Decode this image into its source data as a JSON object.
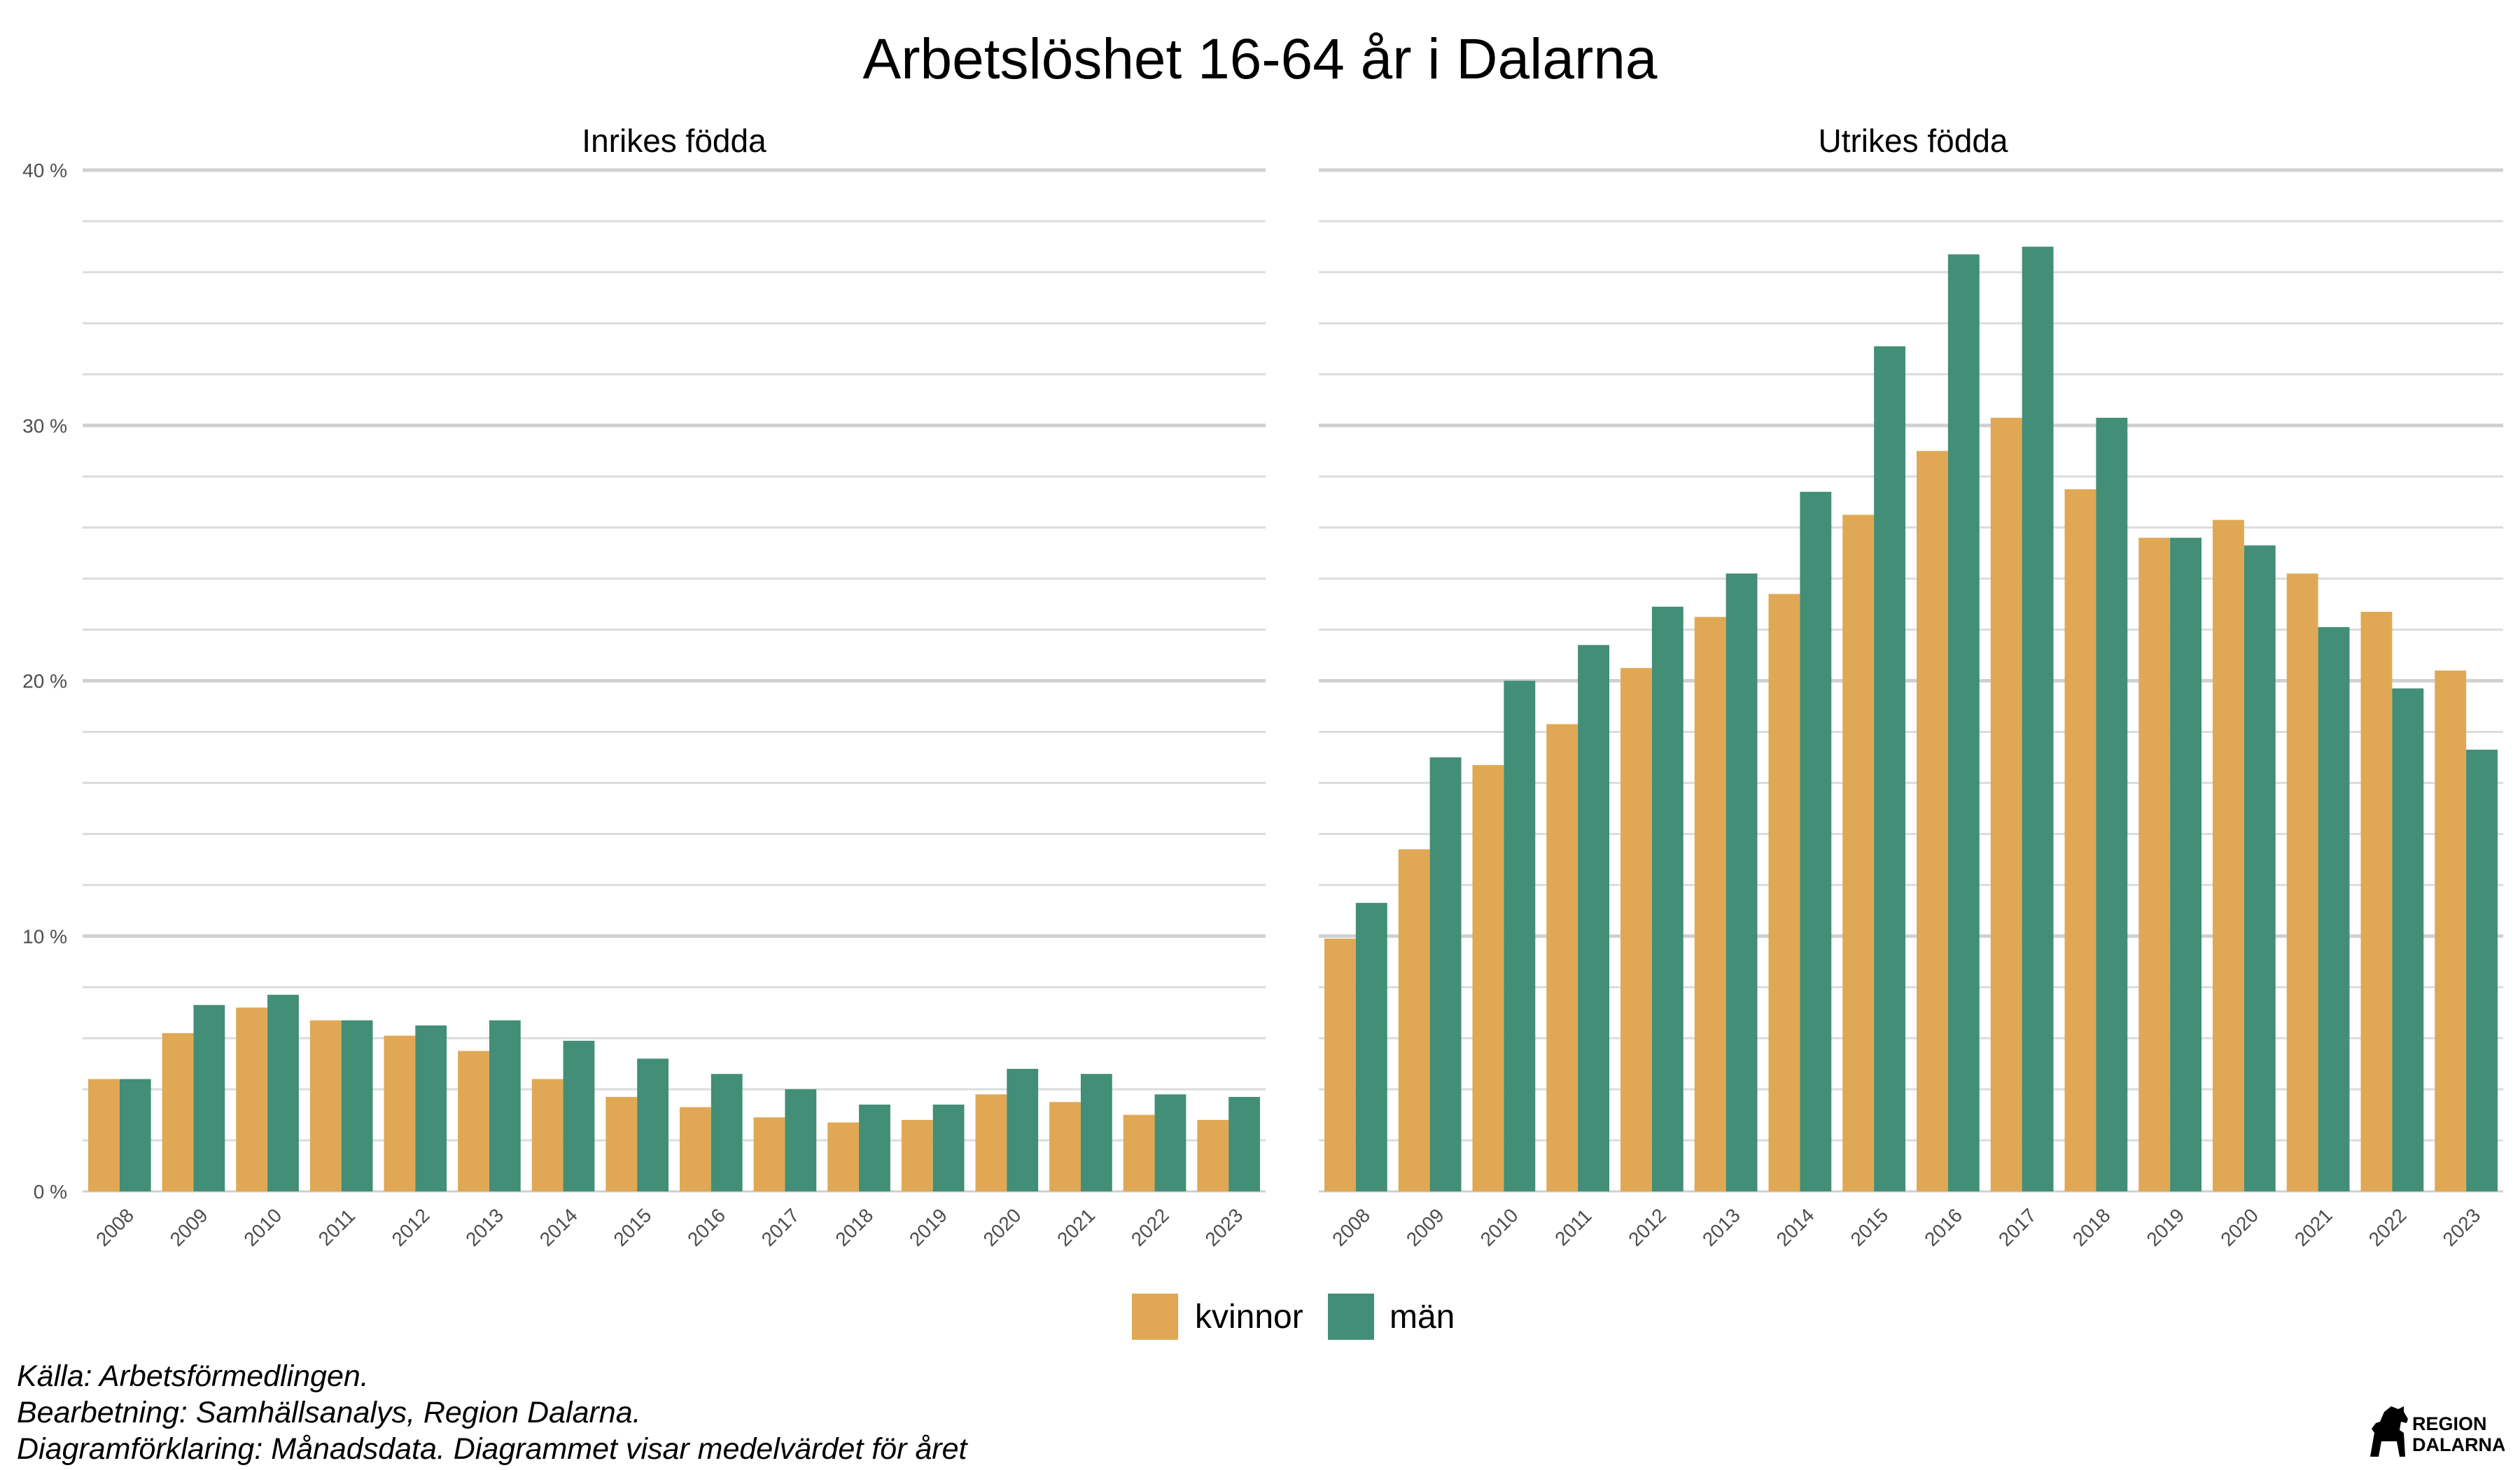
{
  "title": "Arbetslöshet 16-64 år i Dalarna",
  "colors": {
    "kvinnor": "#E0A854",
    "man": "#428E77",
    "grid_major": "#d0d0d0",
    "grid_minor": "#dcdcdc"
  },
  "legend": [
    {
      "label": "kvinnor",
      "color": "#E0A854"
    },
    {
      "label": "män",
      "color": "#428E77"
    }
  ],
  "caption": [
    "Källa: Arbetsförmedlingen.",
    "Bearbetning: Samhällsanalys, Region Dalarna.",
    "Diagramförklaring: Månadsdata. Diagrammet visar medelvärdet för året"
  ],
  "logo": {
    "line1": "REGION",
    "line2": "DALARNA"
  },
  "chart_data": [
    {
      "type": "bar",
      "title": "Inrikes födda",
      "categories": [
        "2008",
        "2009",
        "2010",
        "2011",
        "2012",
        "2013",
        "2014",
        "2015",
        "2016",
        "2017",
        "2018",
        "2019",
        "2020",
        "2021",
        "2022",
        "2023"
      ],
      "ylim": [
        0,
        40
      ],
      "yticks": [
        "0 %",
        "10 %",
        "20 %",
        "30 %",
        "40 %"
      ],
      "series": [
        {
          "name": "kvinnor",
          "values": [
            4.4,
            6.2,
            7.2,
            6.7,
            6.1,
            5.5,
            4.4,
            3.7,
            3.3,
            2.9,
            2.7,
            2.8,
            3.8,
            3.5,
            3.0,
            2.8
          ]
        },
        {
          "name": "män",
          "values": [
            4.4,
            7.3,
            7.7,
            6.7,
            6.5,
            6.7,
            5.9,
            5.2,
            4.6,
            4.0,
            3.4,
            3.4,
            4.8,
            4.6,
            3.8,
            3.7
          ]
        }
      ]
    },
    {
      "type": "bar",
      "title": "Utrikes födda",
      "categories": [
        "2008",
        "2009",
        "2010",
        "2011",
        "2012",
        "2013",
        "2014",
        "2015",
        "2016",
        "2017",
        "2018",
        "2019",
        "2020",
        "2021",
        "2022",
        "2023"
      ],
      "ylim": [
        0,
        40
      ],
      "yticks": [
        "0 %",
        "10 %",
        "20 %",
        "30 %",
        "40 %"
      ],
      "series": [
        {
          "name": "kvinnor",
          "values": [
            9.9,
            13.4,
            16.7,
            18.3,
            20.5,
            22.5,
            23.4,
            26.5,
            29.0,
            30.3,
            27.5,
            25.6,
            26.3,
            24.2,
            22.7,
            20.4
          ]
        },
        {
          "name": "män",
          "values": [
            11.3,
            17.0,
            20.0,
            21.4,
            22.9,
            24.2,
            27.4,
            33.1,
            36.7,
            37.0,
            30.3,
            25.6,
            25.3,
            22.1,
            19.7,
            17.3
          ]
        }
      ]
    }
  ]
}
